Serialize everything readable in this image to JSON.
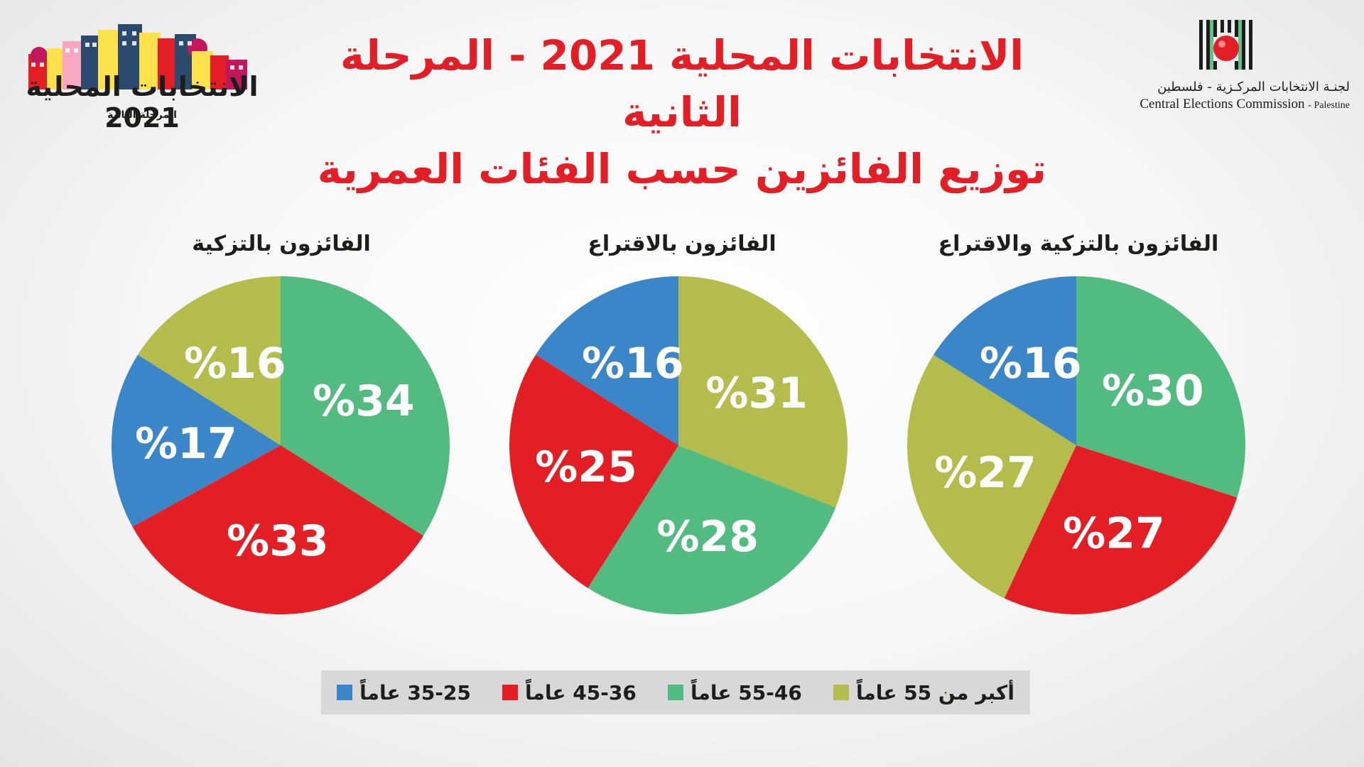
{
  "header": {
    "title_line1": "الانتخابات المحلية 2021 - المرحلة الثانية",
    "title_line2": "توزيع الفائزين حسب الفئات العمرية"
  },
  "logo_left": {
    "title": "الانتخابات المحلية",
    "year": "2021",
    "subtitle": "المرحلة الثانية"
  },
  "logo_right": {
    "name_ar": "لجنـة الانتخابات المركـزية - فلسطين",
    "name_en": "Central Elections Commission",
    "name_en_suffix": "- Palestine"
  },
  "colors": {
    "age_25_35": "#3a86c8",
    "age_36_45": "#e31e24",
    "age_46_55": "#52bb80",
    "age_55_plus": "#b4bc4c",
    "title": "#e31e24"
  },
  "legend": [
    {
      "label": "35-25 عاماً",
      "color": "#3a86c8"
    },
    {
      "label": "45-36 عاماً",
      "color": "#e31e24"
    },
    {
      "label": "55-46 عاماً",
      "color": "#52bb80"
    },
    {
      "label": "أكبر من 55 عاماً",
      "color": "#b4bc4c"
    }
  ],
  "chart_data": [
    {
      "type": "pie",
      "title": "الفائزون بالتزكية والاقتراع",
      "slices": [
        {
          "category": "55-46 عاماً",
          "value": 30,
          "label": "%30",
          "color": "#52bb80"
        },
        {
          "category": "45-36 عاماً",
          "value": 27,
          "label": "%27",
          "color": "#e31e24"
        },
        {
          "category": "أكبر من 55 عاماً",
          "value": 27,
          "label": "%27",
          "color": "#b4bc4c"
        },
        {
          "category": "35-25 عاماً",
          "value": 16,
          "label": "%16",
          "color": "#3a86c8"
        }
      ]
    },
    {
      "type": "pie",
      "title": "الفائزون بالاقتراع",
      "slices": [
        {
          "category": "أكبر من 55 عاماً",
          "value": 31,
          "label": "%31",
          "color": "#b4bc4c"
        },
        {
          "category": "55-46 عاماً",
          "value": 28,
          "label": "%28",
          "color": "#52bb80"
        },
        {
          "category": "45-36 عاماً",
          "value": 25,
          "label": "%25",
          "color": "#e31e24"
        },
        {
          "category": "35-25 عاماً",
          "value": 16,
          "label": "%16",
          "color": "#3a86c8"
        }
      ]
    },
    {
      "type": "pie",
      "title": "الفائزون بالتزكية",
      "slices": [
        {
          "category": "55-46 عاماً",
          "value": 34,
          "label": "%34",
          "color": "#52bb80"
        },
        {
          "category": "45-36 عاماً",
          "value": 33,
          "label": "%33",
          "color": "#e31e24"
        },
        {
          "category": "35-25 عاماً",
          "value": 17,
          "label": "%17",
          "color": "#3a86c8"
        },
        {
          "category": "أكبر من 55 عاماً",
          "value": 16,
          "label": "%16",
          "color": "#b4bc4c"
        }
      ]
    }
  ]
}
